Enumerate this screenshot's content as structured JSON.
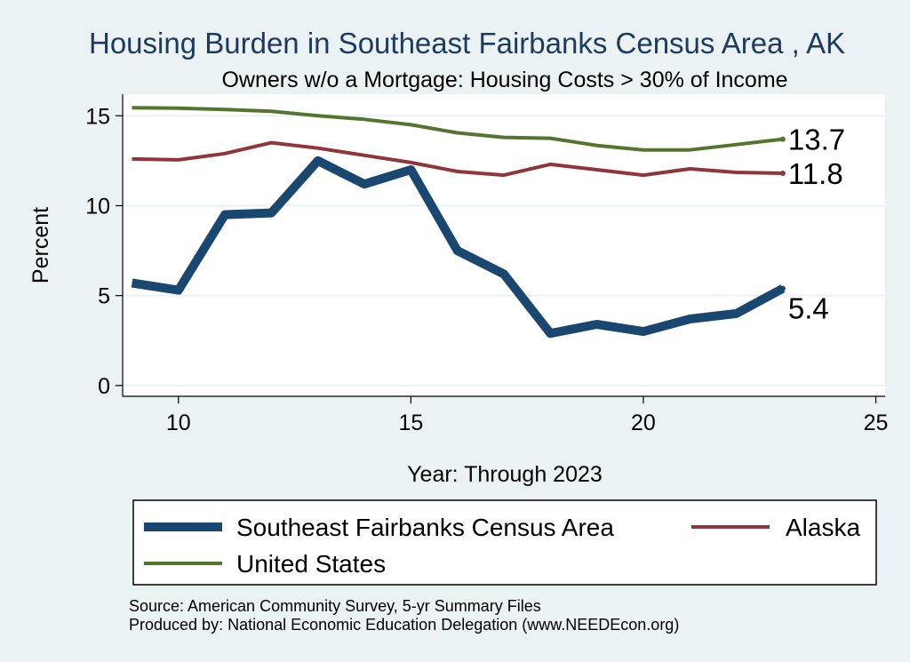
{
  "chart_data": {
    "type": "line",
    "title": "Housing Burden in Southeast Fairbanks Census Area , AK",
    "subtitle": "Owners w/o a Mortgage: Housing Costs > 30% of Income",
    "xlabel": "Year: Through 2023",
    "ylabel": "Percent",
    "xlim": [
      8.8,
      25.2
    ],
    "ylim": [
      -0.6,
      16.2
    ],
    "x_ticks": [
      "10",
      "15",
      "20",
      "25"
    ],
    "y_ticks": [
      "0",
      "5",
      "10",
      "15"
    ],
    "grid": true,
    "legend_position": "bottom",
    "x": [
      9,
      10,
      11,
      12,
      13,
      14,
      15,
      16,
      17,
      18,
      19,
      20,
      21,
      22,
      23
    ],
    "series": [
      {
        "name": "Southeast Fairbanks Census Area",
        "color": "#1a476f",
        "values": [
          5.7,
          5.3,
          9.5,
          9.6,
          12.5,
          11.2,
          12.0,
          7.5,
          6.2,
          2.9,
          3.4,
          3.0,
          3.7,
          4.0,
          5.4
        ],
        "end_label": "5.4"
      },
      {
        "name": "Alaska",
        "color": "#90353b",
        "values": [
          12.6,
          12.55,
          12.9,
          13.5,
          13.2,
          12.8,
          12.4,
          11.9,
          11.7,
          12.3,
          12.0,
          11.7,
          12.05,
          11.85,
          11.8
        ],
        "end_label": "11.8"
      },
      {
        "name": "United States",
        "color": "#55752f",
        "values": [
          15.45,
          15.42,
          15.35,
          15.25,
          15.0,
          14.8,
          14.5,
          14.05,
          13.8,
          13.75,
          13.35,
          13.1,
          13.1,
          13.4,
          13.7
        ],
        "end_label": "13.7"
      }
    ],
    "notes": [
      "Source: American Community Survey, 5-yr Summary Files",
      "Produced by: National Economic Education Delegation (www.NEEDEcon.org)"
    ]
  }
}
